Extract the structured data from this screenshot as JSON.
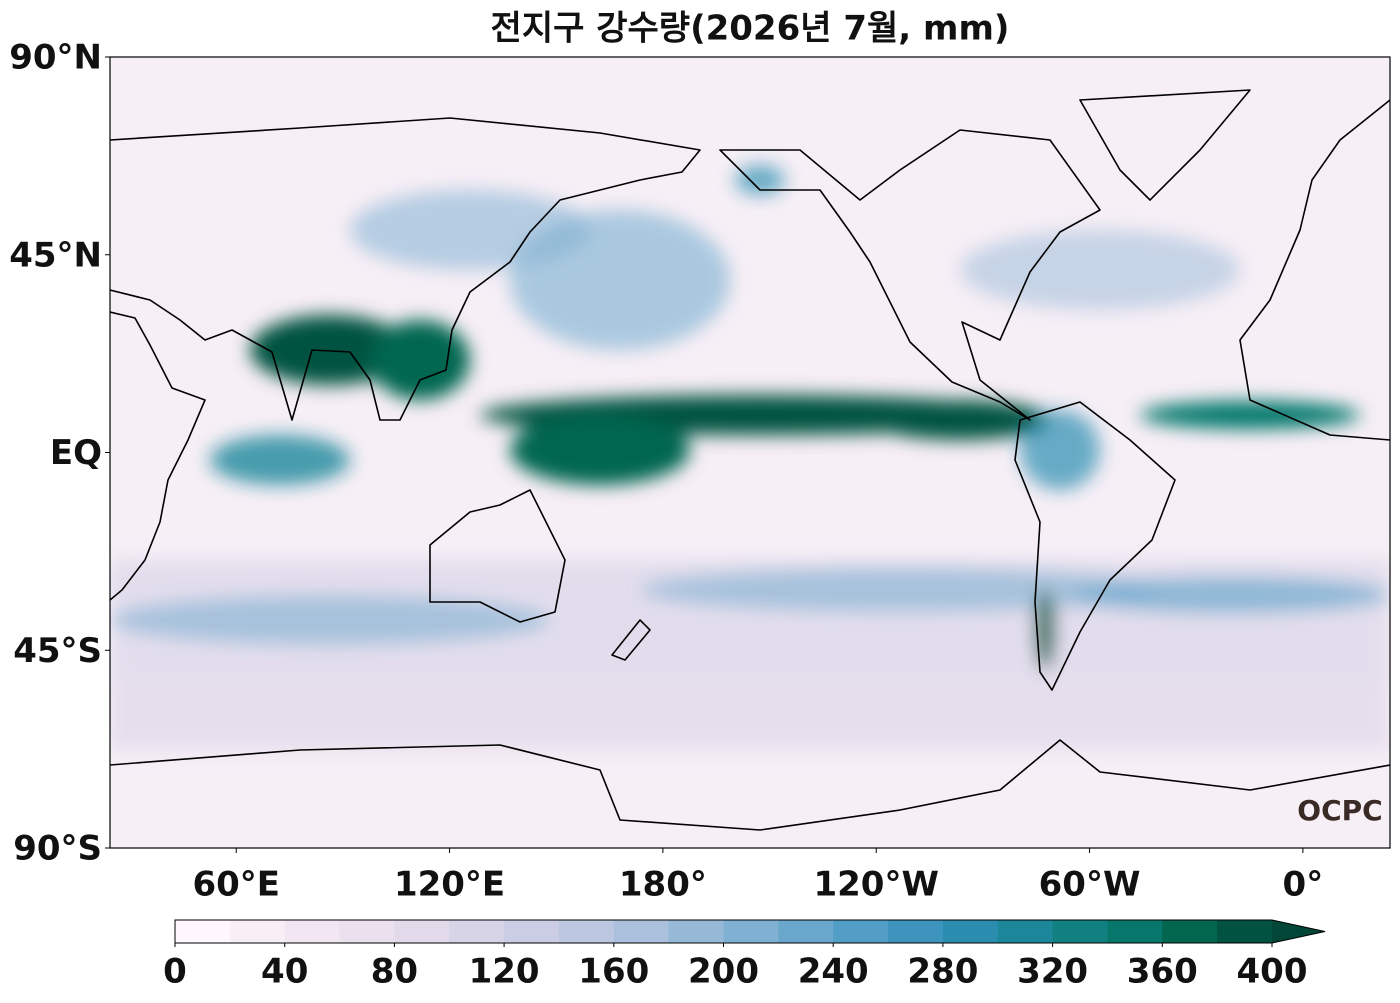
{
  "title": "전지구 강수량(2026년 7월, mm)",
  "map": {
    "xlim": [
      24.5,
      384.5
    ],
    "ylim": [
      -90,
      90
    ],
    "yticks": [
      {
        "value": 90,
        "label": "90°N"
      },
      {
        "value": 45,
        "label": "45°N"
      },
      {
        "value": 0,
        "label": "EQ"
      },
      {
        "value": -45,
        "label": "45°S"
      },
      {
        "value": -90,
        "label": "90°S"
      }
    ],
    "xticks": [
      {
        "value": 60,
        "label": "60°E"
      },
      {
        "value": 120,
        "label": "120°E"
      },
      {
        "value": 180,
        "label": "180°"
      },
      {
        "value": -120,
        "label": "120°W"
      },
      {
        "value": -60,
        "label": "60°W"
      },
      {
        "value": 0,
        "label": "0°"
      }
    ]
  },
  "colorbar": {
    "clim": [
      0,
      400
    ],
    "ticks": [
      0,
      40,
      80,
      120,
      160,
      200,
      240,
      280,
      320,
      360,
      400
    ],
    "colors": [
      "#fff7fb",
      "#f8eff6",
      "#f1e6f1",
      "#ebe0ed",
      "#e2daeb",
      "#d7d4e8",
      "#cacde4",
      "#bcc7e1",
      "#aac0dc",
      "#96b9d7",
      "#80b0d2",
      "#6aa7cc",
      "#539ec6",
      "#3d95bf",
      "#2a8db0",
      "#1c879a",
      "#118080",
      "#06776a",
      "#02664f",
      "#015240"
    ],
    "extend_color": "#014636"
  },
  "logo": "OCPC"
}
